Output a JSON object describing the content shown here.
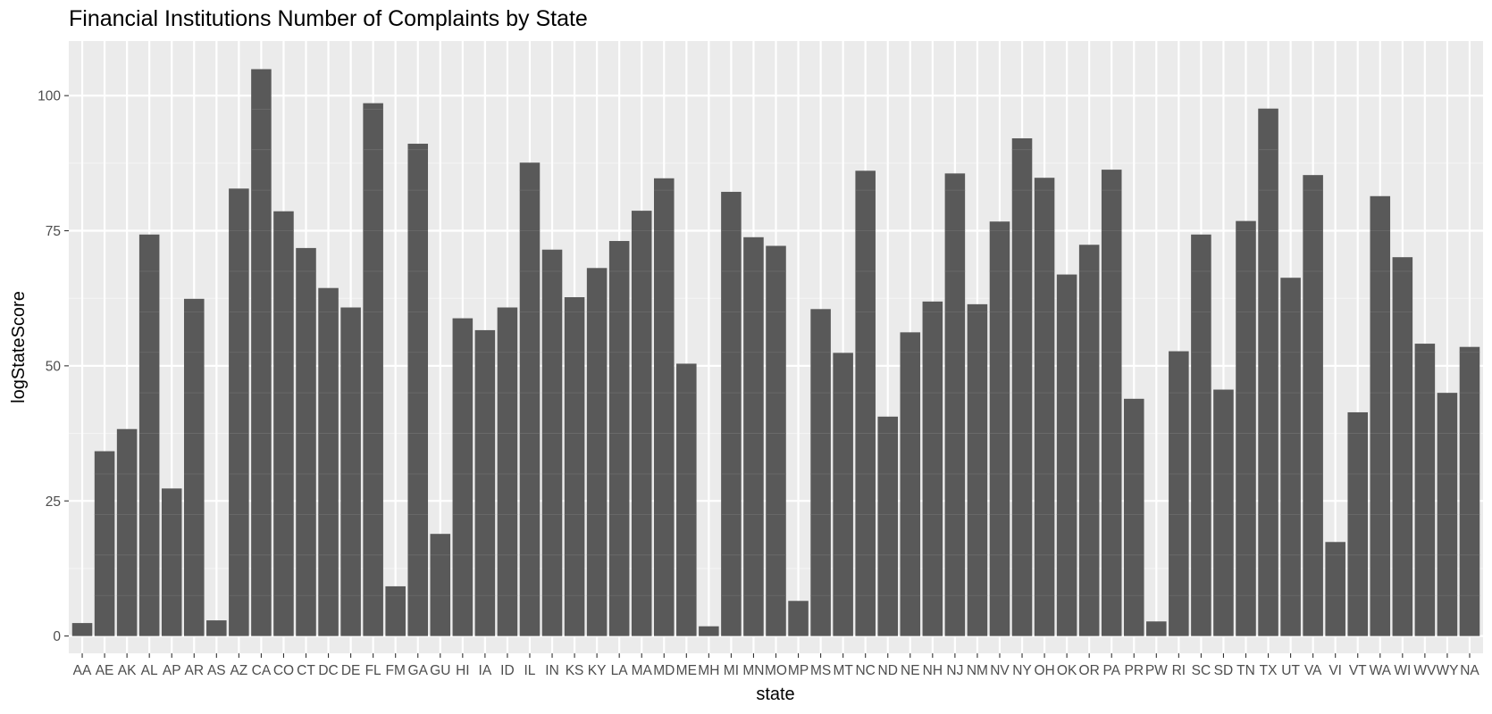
{
  "chart_data": {
    "type": "bar",
    "title": "Financial Institutions Number of Complaints by State",
    "xlabel": "state",
    "ylabel": "logStateScore",
    "ylim": [
      -3.2,
      110.1
    ],
    "yticks": [
      0,
      25,
      50,
      75,
      100
    ],
    "grid": true,
    "legend": "none",
    "colors": {
      "panel_background": "#ebebeb",
      "grid_major": "#ffffff",
      "grid_minor": "#f4f4f4",
      "bar_fill": "#595959",
      "bar_segment_line": "#6c6c6c",
      "tick_mark": "#333333",
      "tick_label": "#4d4d4d"
    },
    "categories": [
      "AA",
      "AE",
      "AK",
      "AL",
      "AP",
      "AR",
      "AS",
      "AZ",
      "CA",
      "CO",
      "CT",
      "DC",
      "DE",
      "FL",
      "FM",
      "GA",
      "GU",
      "HI",
      "IA",
      "ID",
      "IL",
      "IN",
      "KS",
      "KY",
      "LA",
      "MA",
      "MD",
      "ME",
      "MH",
      "MI",
      "MN",
      "MO",
      "MP",
      "MS",
      "MT",
      "NC",
      "ND",
      "NE",
      "NH",
      "NJ",
      "NM",
      "NV",
      "NY",
      "OH",
      "OK",
      "OR",
      "PA",
      "PR",
      "PW",
      "RI",
      "SC",
      "SD",
      "TN",
      "TX",
      "UT",
      "VA",
      "VI",
      "VT",
      "WA",
      "WI",
      "WV",
      "WY",
      "NA"
    ],
    "values": [
      2.4,
      34.2,
      38.3,
      74.3,
      27.3,
      62.4,
      2.9,
      82.8,
      104.9,
      78.6,
      71.8,
      64.4,
      60.8,
      98.6,
      9.2,
      91.1,
      18.9,
      58.8,
      56.6,
      60.8,
      87.6,
      71.5,
      62.7,
      68.1,
      73.1,
      78.7,
      84.7,
      50.4,
      1.8,
      82.2,
      73.8,
      72.2,
      6.5,
      60.5,
      52.4,
      86.1,
      40.6,
      56.2,
      61.9,
      85.6,
      61.4,
      76.7,
      92.1,
      84.8,
      66.9,
      72.4,
      86.3,
      43.9,
      2.7,
      52.7,
      74.3,
      45.6,
      76.8,
      97.6,
      66.3,
      85.3,
      17.4,
      41.4,
      81.4,
      70.1,
      54.1,
      45.0,
      53.5
    ]
  }
}
